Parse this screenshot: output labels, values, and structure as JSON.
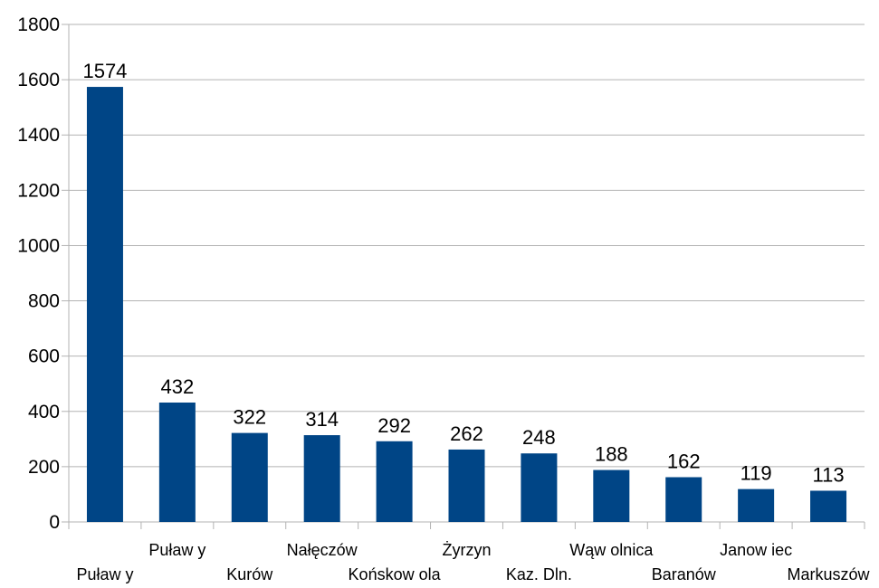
{
  "chart_data": {
    "type": "bar",
    "categories": [
      "Puław y",
      "Puław y",
      "Kurów",
      "Nałęczów",
      "Końskow ola",
      "Żyrzyn",
      "Kaz. Dln.",
      "Wąw olnica",
      "Baranów",
      "Janow iec",
      "Markuszów"
    ],
    "values": [
      1574,
      432,
      322,
      314,
      292,
      262,
      248,
      188,
      162,
      119,
      113
    ],
    "data_labels": [
      "1574",
      "432",
      "322",
      "314",
      "292",
      "262",
      "248",
      "188",
      "162",
      "119",
      "113"
    ],
    "ylim": [
      0,
      1800
    ],
    "yticks": [
      0,
      200,
      400,
      600,
      800,
      1000,
      1200,
      1400,
      1600,
      1800
    ],
    "ytick_labels": [
      "0",
      "200",
      "400",
      "600",
      "800",
      "1000",
      "1200",
      "1400",
      "1600",
      "1800"
    ],
    "grid": true,
    "legend": "none",
    "colors": {
      "bar": "#004586",
      "grid": "#b3b3b3",
      "axis": "#b3b3b3"
    }
  }
}
